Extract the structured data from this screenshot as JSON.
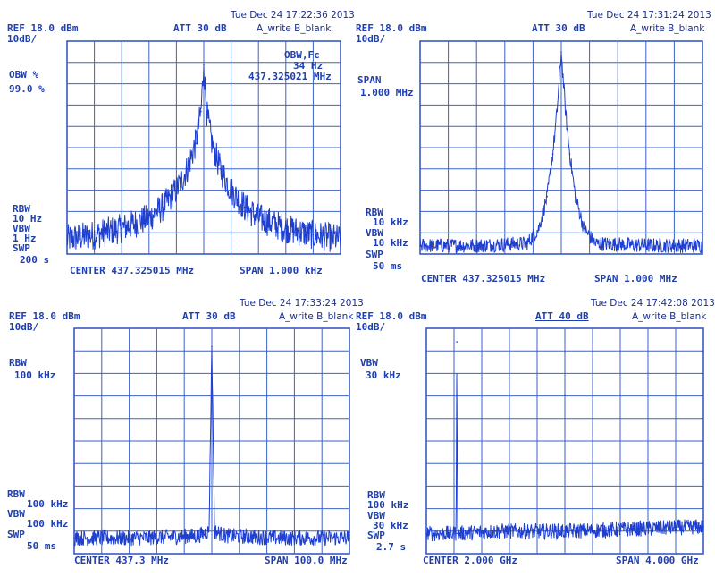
{
  "panels": [
    {
      "timestamp": "Tue Dec 24 17:22:36 2013",
      "ref": "REF 18.0 dBm",
      "scale": "10dB/",
      "att": "ATT 30 dB",
      "trace_mode": "A_write B_blank",
      "left_label_1": "OBW %",
      "left_value_1": "99.0 %",
      "right_label_1": "OBW,Fc",
      "right_value_1": "34 Hz",
      "right_value_2": "437.325021 MHz",
      "rbw_label": "RBW",
      "rbw_value": "10 Hz",
      "vbw_label": "VBW",
      "vbw_value": "1 Hz",
      "swp_label": "SWP",
      "swp_value": "200 s",
      "center": "CENTER 437.325015 MHz",
      "span": "SPAN 1.000 kHz"
    },
    {
      "timestamp": "Tue Dec 24 17:31:24 2013",
      "ref": "REF 18.0 dBm",
      "scale": "10dB/",
      "att": "ATT 30 dB",
      "trace_mode": "A_write B_blank",
      "left_label_1": "SPAN",
      "left_value_1": "1.000 MHz",
      "rbw_label": "RBW",
      "rbw_value": "10 kHz",
      "vbw_label": "VBW",
      "vbw_value": "10 kHz",
      "swp_label": "SWP",
      "swp_value": "50 ms",
      "center": "CENTER 437.325015 MHz",
      "span": "SPAN 1.000 MHz"
    },
    {
      "timestamp": "Tue Dec 24 17:33:24 2013",
      "ref": "REF 18.0 dBm",
      "scale": "10dB/",
      "att": "ATT 30 dB",
      "trace_mode": "A_write B_blank",
      "left_label_1": "RBW",
      "left_value_1": "100 kHz",
      "rbw_label": "RBW",
      "rbw_value": "100 kHz",
      "vbw_label": "VBW",
      "vbw_value": "100 kHz",
      "swp_label": "SWP",
      "swp_value": "50 ms",
      "center": "CENTER 437.3 MHz",
      "span": "SPAN 100.0 MHz"
    },
    {
      "timestamp": "Tue Dec 24 17:42:08 2013",
      "ref": "REF 18.0 dBm",
      "scale": "10dB/",
      "att": "ATT 40 dB",
      "trace_mode": "A_write B_blank",
      "left_label_1": "VBW",
      "left_value_1": "30 kHz",
      "rbw_label": "RBW",
      "rbw_value": "100 kHz",
      "vbw_label": "VBW",
      "vbw_value": "30 kHz",
      "swp_label": "SWP",
      "swp_value": "2.7 s",
      "center": "CENTER 2.000 GHz",
      "span": "SPAN 4.000 GHz"
    }
  ],
  "chart_data": [
    {
      "type": "line",
      "ylabel": "dBm",
      "x_unit": "kHz offset from center",
      "xlim": [
        -0.5,
        0.5
      ],
      "ylim": [
        -82,
        18
      ],
      "grid": true,
      "series": [
        {
          "x": [
            -0.5,
            -0.4,
            -0.3,
            -0.2,
            -0.15,
            -0.1,
            -0.06,
            -0.03,
            -0.01,
            0.0,
            0.01,
            0.03,
            0.06,
            0.1,
            0.15,
            0.2,
            0.3,
            0.4,
            0.5
          ],
          "values": [
            -75,
            -73,
            -70,
            -65,
            -60,
            -52,
            -42,
            -30,
            -15,
            7,
            -15,
            -30,
            -42,
            -52,
            -60,
            -65,
            -70,
            -73,
            -75
          ]
        }
      ]
    },
    {
      "type": "line",
      "ylabel": "dBm",
      "x_unit": "MHz offset from center",
      "xlim": [
        -0.5,
        0.5
      ],
      "ylim": [
        -82,
        18
      ],
      "grid": true,
      "series": [
        {
          "x": [
            -0.5,
            -0.3,
            -0.12,
            -0.08,
            -0.05,
            -0.03,
            -0.015,
            0.0,
            0.015,
            0.03,
            0.05,
            0.08,
            0.12,
            0.3,
            0.5
          ],
          "values": [
            -78,
            -78,
            -77,
            -70,
            -55,
            -35,
            -15,
            13,
            -15,
            -35,
            -55,
            -70,
            -77,
            -78,
            -78
          ]
        }
      ]
    },
    {
      "type": "line",
      "ylabel": "dBm",
      "x_unit": "MHz offset from center",
      "xlim": [
        -50,
        50
      ],
      "ylim": [
        -82,
        18
      ],
      "grid": true,
      "series": [
        {
          "x": [
            -50,
            -25,
            -5,
            -1,
            0,
            1,
            5,
            25,
            50
          ],
          "values": [
            -75,
            -75,
            -74,
            -72,
            10,
            -72,
            -74,
            -75,
            -75
          ]
        }
      ]
    },
    {
      "type": "line",
      "ylabel": "dBm",
      "x_unit": "GHz",
      "xlim": [
        0,
        4
      ],
      "ylim": [
        -82,
        18
      ],
      "grid": true,
      "series": [
        {
          "x": [
            0.0,
            0.3,
            0.43,
            0.44,
            0.45,
            1.0,
            2.0,
            3.0,
            4.0
          ],
          "values": [
            -73,
            -73,
            -73,
            12,
            -73,
            -72,
            -72,
            -71,
            -70
          ]
        }
      ]
    }
  ]
}
